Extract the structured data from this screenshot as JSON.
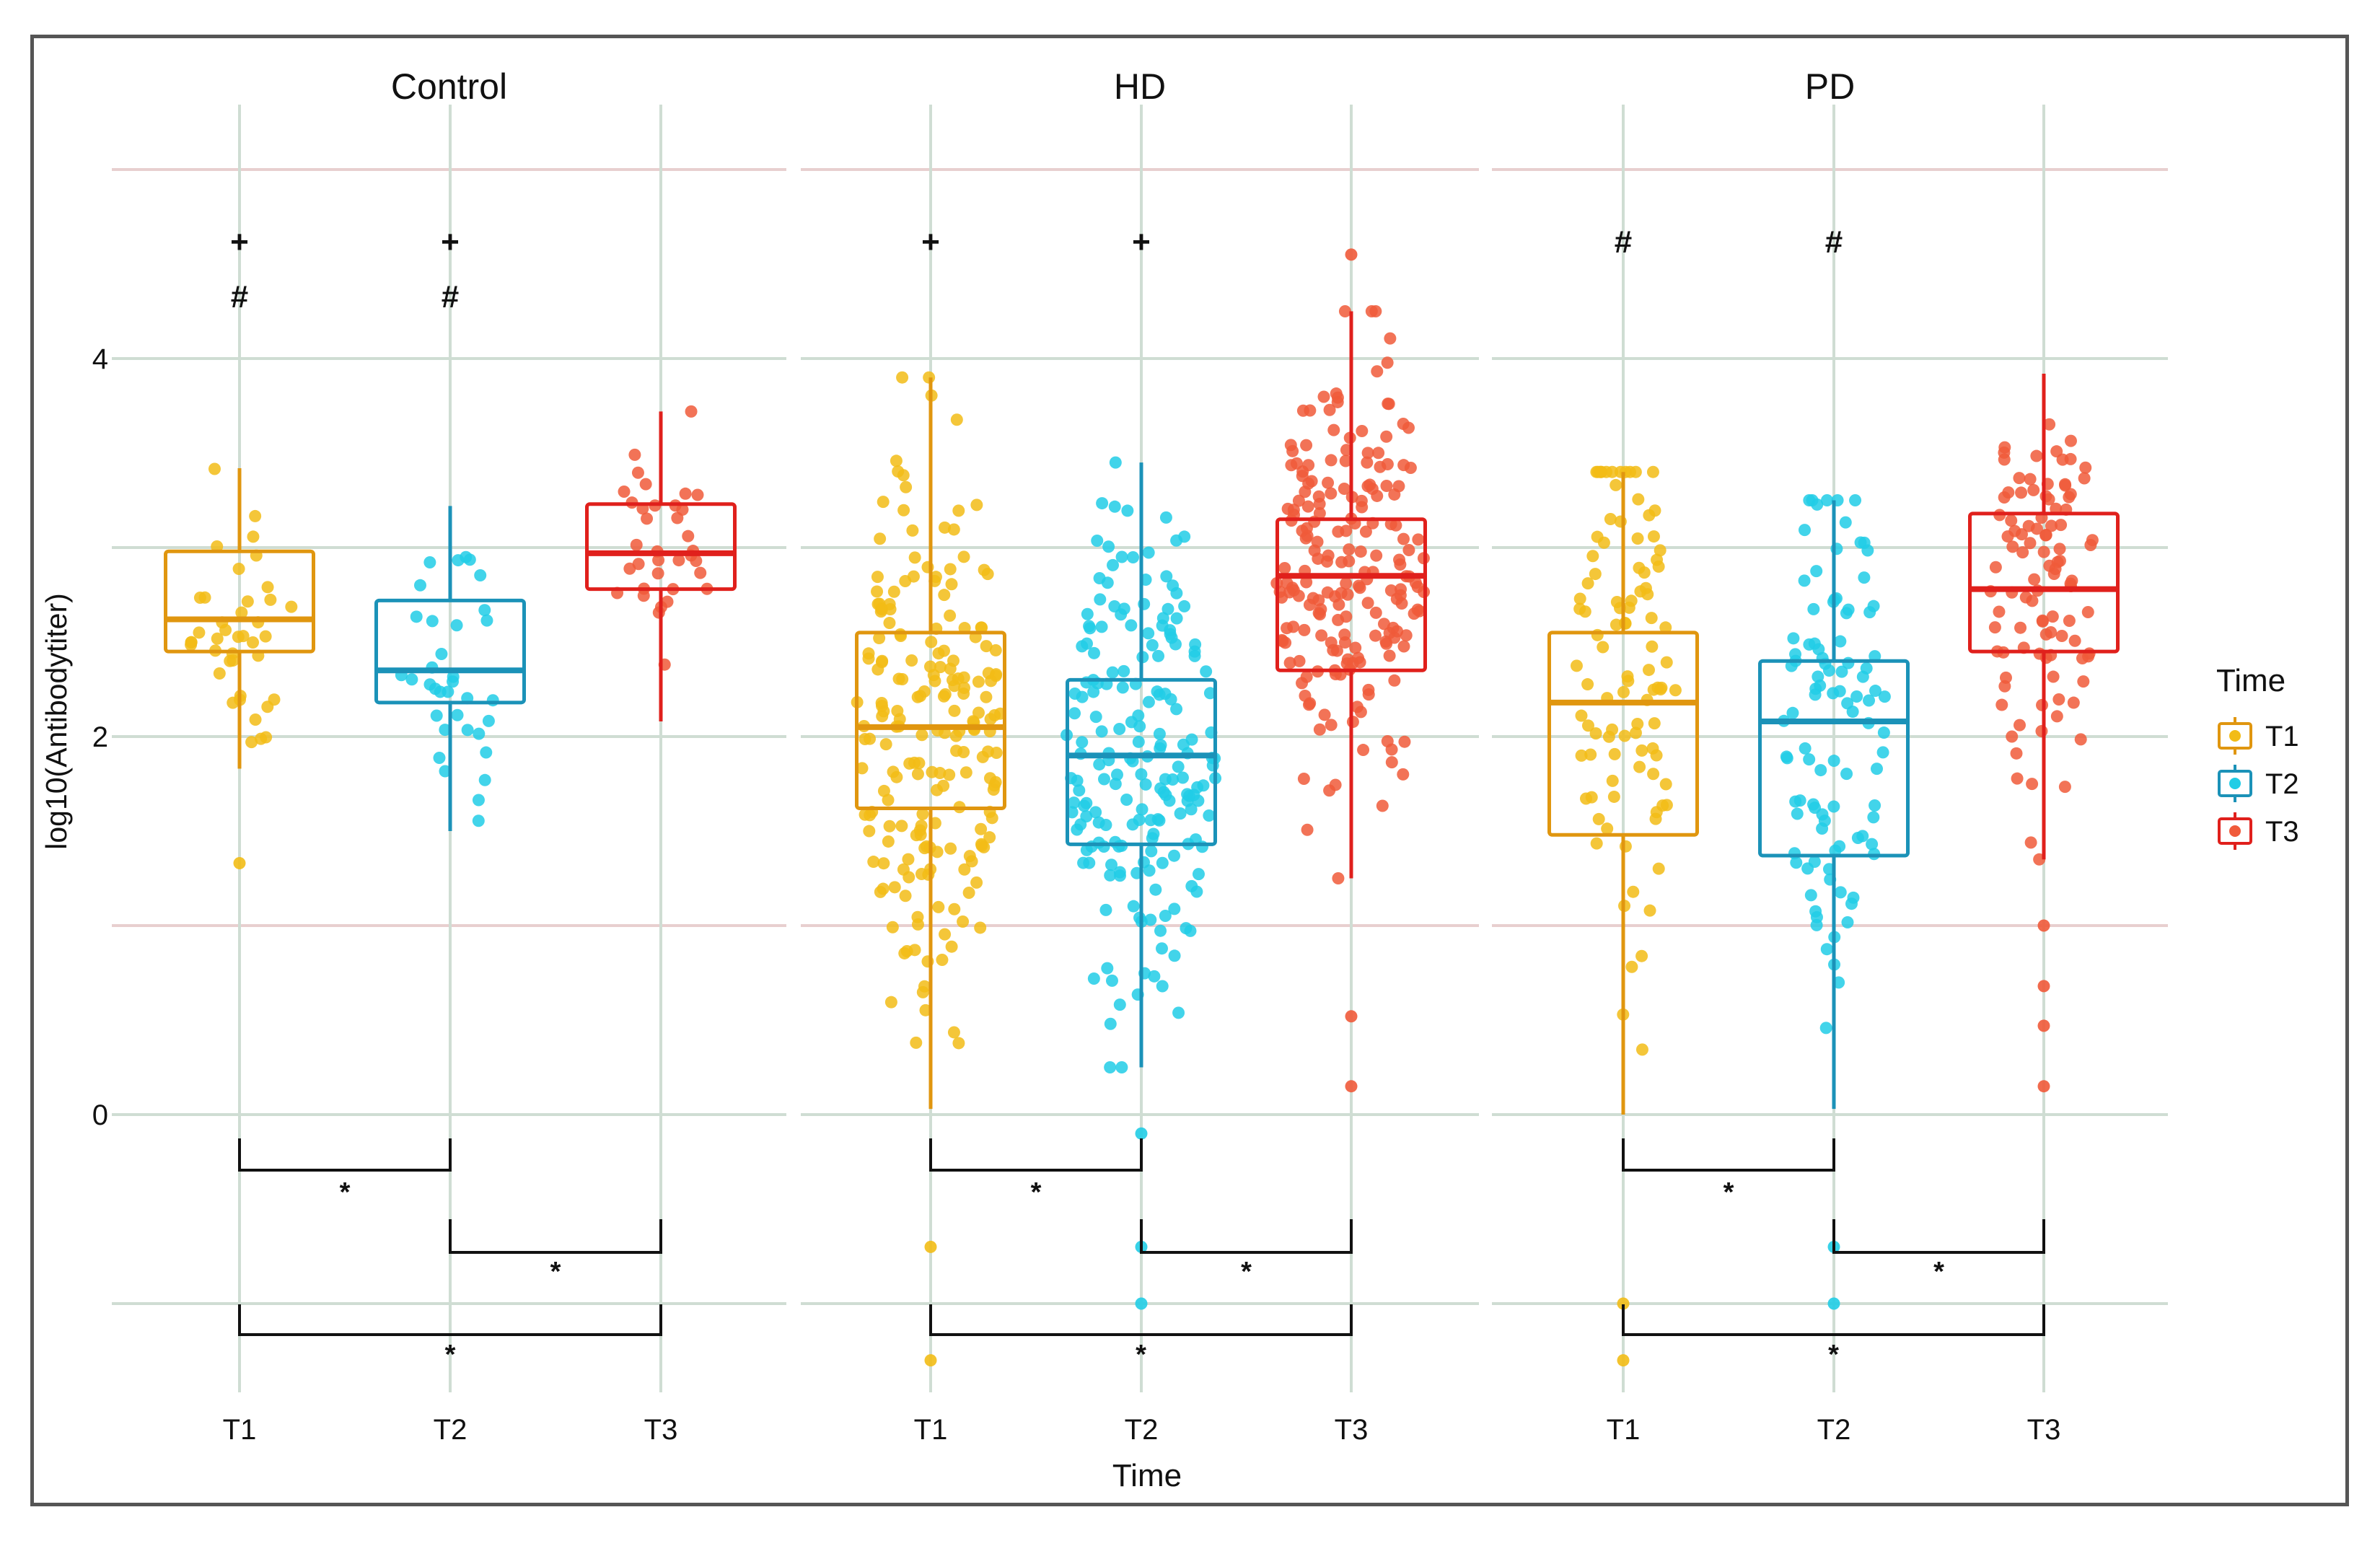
{
  "chart_data": {
    "type": "box",
    "ylabel": "log10(Antibodytiter)",
    "xlabel": "Time",
    "y_ticks": [
      0,
      2,
      4
    ],
    "y_range": [
      -1.45,
      5.2
    ],
    "categories": [
      "T1",
      "T2",
      "T3"
    ],
    "legend": {
      "title": "Time",
      "position": "right",
      "entries": [
        "T1",
        "T2",
        "T3"
      ]
    },
    "colors": {
      "T1_box": "#E0960F",
      "T1_point": "#F2BC16",
      "T2_box": "#1B92B8",
      "T2_point": "#21CDE6",
      "T3_box": "#E0201C",
      "T3_point": "#F05A3A",
      "minor_grid": "#E8CFCF",
      "major_grid": "#CFDDD3"
    },
    "panels": [
      {
        "title": "Control",
        "boxes": [
          {
            "time": "T1",
            "q1": 2.45,
            "median": 2.62,
            "q3": 2.98,
            "whisker_low": 1.83,
            "whisker_high": 3.42,
            "n": 40,
            "spread": 0.9
          },
          {
            "time": "T2",
            "q1": 2.18,
            "median": 2.35,
            "q3": 2.72,
            "whisker_low": 1.5,
            "whisker_high": 3.22,
            "n": 35,
            "spread": 0.9
          },
          {
            "time": "T3",
            "q1": 2.78,
            "median": 2.97,
            "q3": 3.23,
            "whisker_low": 2.08,
            "whisker_high": 3.72,
            "n": 35,
            "spread": 0.9
          }
        ],
        "outliers": [
          {
            "time": "T1",
            "value": 1.33
          }
        ],
        "top_markers": [
          {
            "time": "T1",
            "symbols": [
              "+",
              "#"
            ]
          },
          {
            "time": "T2",
            "symbols": [
              "+",
              "#"
            ]
          }
        ],
        "significance": [
          {
            "from": "T1",
            "to": "T2",
            "label": "*"
          },
          {
            "from": "T2",
            "to": "T3",
            "label": "*"
          },
          {
            "from": "T1",
            "to": "T3",
            "label": "*"
          }
        ]
      },
      {
        "title": "HD",
        "boxes": [
          {
            "time": "T1",
            "q1": 1.62,
            "median": 2.05,
            "q3": 2.55,
            "whisker_low": 0.03,
            "whisker_high": 3.9,
            "n": 200,
            "spread": 1.6
          },
          {
            "time": "T2",
            "q1": 1.43,
            "median": 1.9,
            "q3": 2.3,
            "whisker_low": 0.25,
            "whisker_high": 3.45,
            "n": 190,
            "spread": 1.6
          },
          {
            "time": "T3",
            "q1": 2.35,
            "median": 2.85,
            "q3": 3.15,
            "whisker_low": 1.25,
            "whisker_high": 4.25,
            "n": 200,
            "spread": 1.6
          }
        ],
        "outliers": [
          {
            "time": "T1",
            "value": -0.7
          },
          {
            "time": "T1",
            "value": -1.3
          },
          {
            "time": "T2",
            "value": -0.1
          },
          {
            "time": "T2",
            "value": -0.7
          },
          {
            "time": "T2",
            "value": -1.0
          },
          {
            "time": "T3",
            "value": 0.52
          },
          {
            "time": "T3",
            "value": 0.15
          },
          {
            "time": "T3",
            "value": 4.55
          }
        ],
        "top_markers": [
          {
            "time": "T1",
            "symbols": [
              "+"
            ]
          },
          {
            "time": "T2",
            "symbols": [
              "+"
            ]
          }
        ],
        "significance": [
          {
            "from": "T1",
            "to": "T2",
            "label": "*"
          },
          {
            "from": "T2",
            "to": "T3",
            "label": "*"
          },
          {
            "from": "T1",
            "to": "T3",
            "label": "*"
          }
        ]
      },
      {
        "title": "PD",
        "boxes": [
          {
            "time": "T1",
            "q1": 1.48,
            "median": 2.18,
            "q3": 2.55,
            "whisker_low": 0.0,
            "whisker_high": 3.4,
            "n": 100,
            "spread": 1.4
          },
          {
            "time": "T2",
            "q1": 1.37,
            "median": 2.08,
            "q3": 2.4,
            "whisker_low": 0.03,
            "whisker_high": 3.25,
            "n": 100,
            "spread": 1.4
          },
          {
            "time": "T3",
            "q1": 2.45,
            "median": 2.78,
            "q3": 3.18,
            "whisker_low": 1.35,
            "whisker_high": 3.92,
            "n": 100,
            "spread": 1.4
          }
        ],
        "outliers": [
          {
            "time": "T1",
            "value": -1.0
          },
          {
            "time": "T1",
            "value": -1.3
          },
          {
            "time": "T2",
            "value": -0.7
          },
          {
            "time": "T2",
            "value": -1.0
          },
          {
            "time": "T3",
            "value": 1.0
          },
          {
            "time": "T3",
            "value": 0.68
          },
          {
            "time": "T3",
            "value": 0.47
          },
          {
            "time": "T3",
            "value": 0.15
          }
        ],
        "top_markers": [
          {
            "time": "T1",
            "symbols": [
              "#"
            ]
          },
          {
            "time": "T2",
            "symbols": [
              "#"
            ]
          }
        ],
        "significance": [
          {
            "from": "T1",
            "to": "T2",
            "label": "*"
          },
          {
            "from": "T2",
            "to": "T3",
            "label": "*"
          },
          {
            "from": "T1",
            "to": "T3",
            "label": "*"
          }
        ]
      }
    ]
  }
}
